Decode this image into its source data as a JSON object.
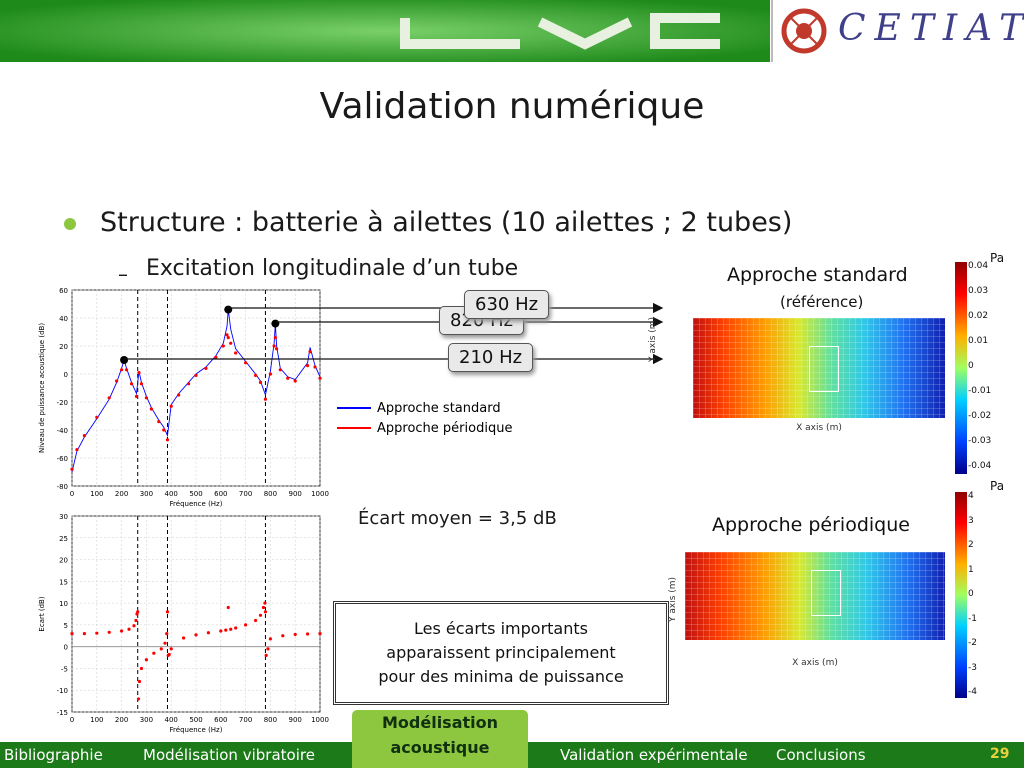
{
  "header": {
    "right_logo": "CETIAT"
  },
  "slide": {
    "title": "Validation numérique",
    "bullet": "Structure : batterie à ailettes (10 ailettes ; 2 tubes)",
    "sub_bullet_marker": "–",
    "sub_bullet": "Excitation longitudinale d’un tube"
  },
  "callouts": {
    "f630": "630 Hz",
    "f820": "820 Hz",
    "f210": "210 Hz"
  },
  "legend": {
    "standard": "Approche standard",
    "periodic": "Approche périodique"
  },
  "stats": {
    "mean_gap": "Écart moyen = 3,5 dB"
  },
  "note": {
    "line1": "Les écarts importants",
    "line2": "apparaissent principalement",
    "line3": "pour des minima de puissance"
  },
  "maps": {
    "standard_title": "Approche standard",
    "standard_sub": "(référence)",
    "periodic_title": "Approche périodique",
    "unit": "Pa",
    "xaxis_label": "X axis (m)",
    "yaxis_label": "Y axis (m)",
    "std_scale_labels": [
      "0.04",
      "0.03",
      "0.02",
      "0.01",
      "0",
      "-0.01",
      "-0.02",
      "-0.03",
      "-0.04"
    ],
    "per_scale_labels": [
      "4",
      "3",
      "2",
      "1",
      "0",
      "-1",
      "-2",
      "-3",
      "-4"
    ]
  },
  "footer": {
    "bibliographie": "Bibliographie",
    "vibratoire": "Modélisation vibratoire",
    "active_line1": "Modélisation",
    "active_line2": "acoustique",
    "experimentale": "Validation expérimentale",
    "conclusions": "Conclusions",
    "page": "29"
  },
  "colors": {
    "banner_green": "#1e8a1a",
    "footer_green": "#1c7a18",
    "accent_green": "#8dc63f",
    "standard_line": "#0000ff",
    "periodic_line": "#ff0000"
  },
  "chart_data": [
    {
      "type": "line",
      "title": "",
      "xlabel": "Fréquence (Hz)",
      "ylabel": "Niveau de puissance acoustique (dB)",
      "xlim": [
        0,
        1000
      ],
      "ylim": [
        -80,
        60
      ],
      "xticks": [
        0,
        100,
        200,
        300,
        400,
        500,
        600,
        700,
        800,
        900,
        1000
      ],
      "yticks": [
        -80,
        -60,
        -40,
        -20,
        0,
        20,
        40,
        60
      ],
      "vlines": [
        265,
        385,
        780
      ],
      "markers": [
        {
          "x": 210,
          "y": 10
        },
        {
          "x": 630,
          "y": 46
        },
        {
          "x": 820,
          "y": 36
        }
      ],
      "series": [
        {
          "name": "Approche standard",
          "x": [
            0,
            20,
            50,
            100,
            150,
            180,
            200,
            210,
            220,
            240,
            260,
            270,
            280,
            300,
            320,
            350,
            370,
            385,
            400,
            430,
            470,
            500,
            540,
            580,
            610,
            625,
            630,
            640,
            660,
            700,
            740,
            760,
            780,
            800,
            815,
            820,
            825,
            840,
            870,
            900,
            950,
            960,
            980,
            1000
          ],
          "y": [
            -70,
            -55,
            -45,
            -32,
            -18,
            -6,
            4,
            10,
            4,
            -6,
            -14,
            2,
            -6,
            -16,
            -24,
            -33,
            -38,
            -44,
            -22,
            -14,
            -6,
            0,
            5,
            13,
            22,
            34,
            46,
            32,
            18,
            9,
            0,
            -5,
            -15,
            2,
            22,
            36,
            20,
            4,
            -2,
            -4,
            8,
            19,
            6,
            -2
          ]
        },
        {
          "name": "Approche périodique",
          "x": [
            0,
            20,
            50,
            100,
            150,
            180,
            200,
            210,
            220,
            240,
            260,
            270,
            280,
            300,
            320,
            350,
            370,
            385,
            400,
            430,
            470,
            500,
            540,
            580,
            610,
            625,
            630,
            640,
            660,
            700,
            740,
            760,
            780,
            800,
            815,
            820,
            825,
            840,
            870,
            900,
            950,
            960,
            980,
            1000
          ],
          "y": [
            -68,
            -54,
            -44,
            -31,
            -17,
            -5,
            3,
            9,
            3,
            -7,
            -16,
            1,
            -7,
            -17,
            -25,
            -34,
            -40,
            -47,
            -23,
            -15,
            -7,
            -1,
            4,
            12,
            20,
            28,
            26,
            22,
            15,
            8,
            -1,
            -6,
            -18,
            0,
            20,
            26,
            18,
            3,
            -3,
            -5,
            6,
            16,
            5,
            -3
          ]
        }
      ]
    },
    {
      "type": "line",
      "title": "",
      "xlabel": "Fréquence (Hz)",
      "ylabel": "Ecart (dB)",
      "xlim": [
        0,
        1000
      ],
      "ylim": [
        -15,
        30
      ],
      "xticks": [
        0,
        100,
        200,
        300,
        400,
        500,
        600,
        700,
        800,
        900,
        1000
      ],
      "yticks": [
        -15,
        -10,
        -5,
        0,
        5,
        10,
        15,
        20,
        25,
        30
      ],
      "vlines": [
        265,
        385,
        780
      ],
      "series": [
        {
          "name": "",
          "x": [
            0,
            50,
            100,
            150,
            200,
            230,
            250,
            258,
            262,
            265,
            268,
            272,
            280,
            300,
            330,
            360,
            375,
            382,
            385,
            388,
            392,
            400,
            450,
            500,
            550,
            600,
            620,
            630,
            640,
            660,
            700,
            740,
            760,
            772,
            778,
            780,
            783,
            790,
            800,
            850,
            900,
            950,
            1000
          ],
          "y": [
            3,
            3,
            3.1,
            3.3,
            3.6,
            4,
            4.8,
            6,
            7.5,
            8,
            -12,
            -8,
            -5,
            -3,
            -1.5,
            -0.5,
            0.8,
            3,
            8,
            -2,
            -1.8,
            -0.5,
            2,
            2.7,
            3.2,
            3.6,
            3.8,
            9,
            4,
            4.3,
            5,
            6,
            7.2,
            9,
            10,
            8,
            -2,
            -0.5,
            1.8,
            2.5,
            2.8,
            2.9,
            3
          ]
        }
      ]
    }
  ]
}
